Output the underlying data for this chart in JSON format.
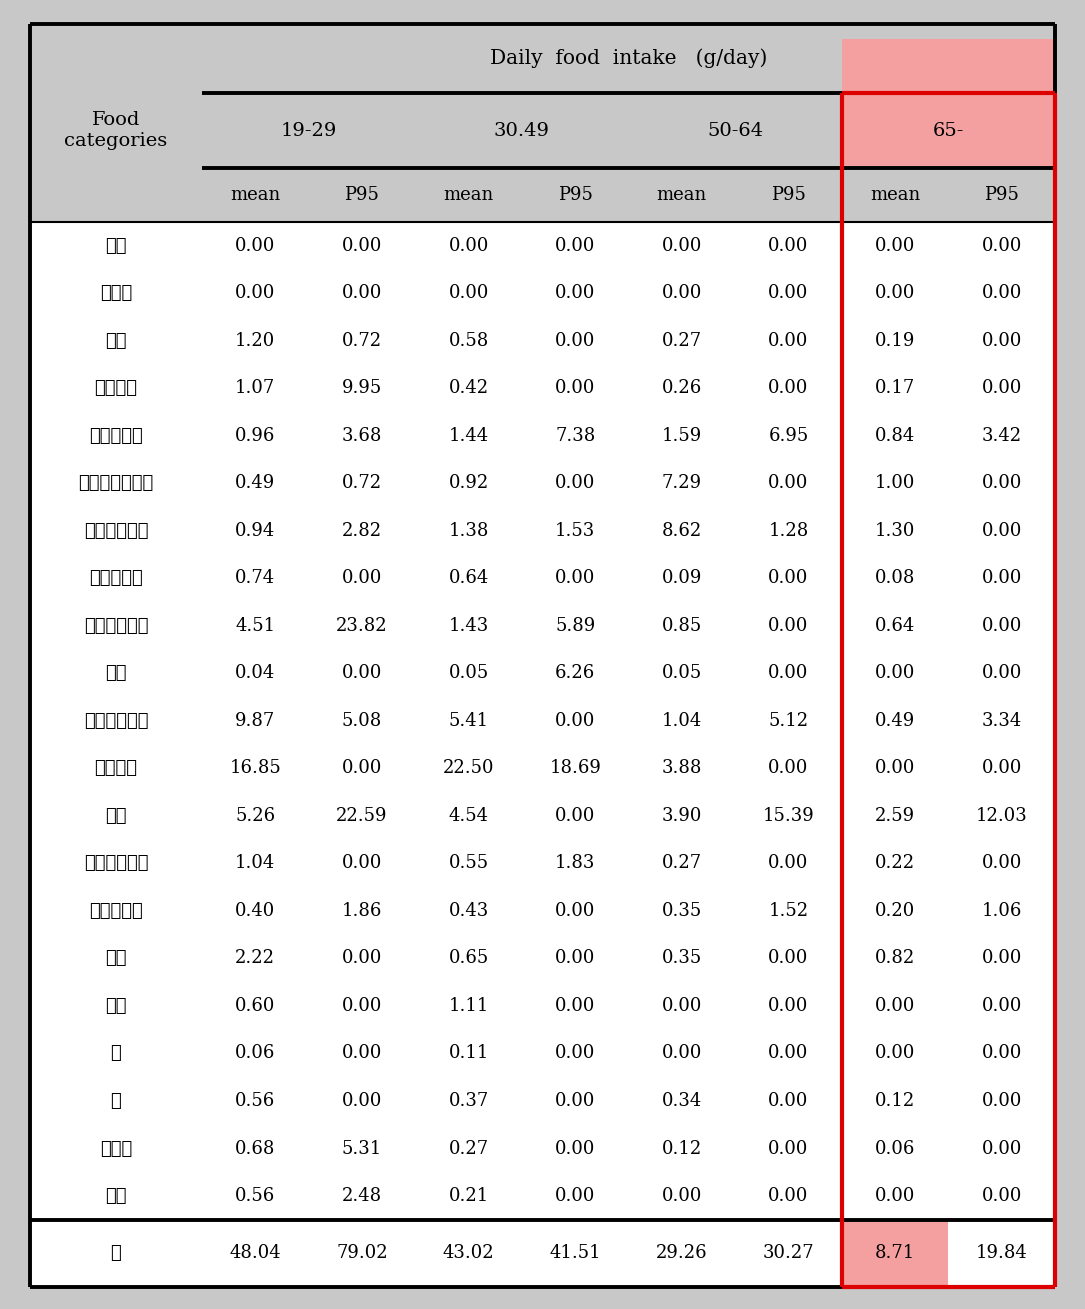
{
  "title_row": "Daily  food  intake   (g/day)",
  "age_groups": [
    "19-29",
    "30.49",
    "50-64",
    "65-"
  ],
  "sub_headers": [
    "mean",
    "P95"
  ],
  "food_categories": [
    "분유",
    "이유식",
    "음료",
    "과일주스",
    "과일통조림",
    "곡류두류통조림",
    "채소류통조림",
    "육류통조림",
    "수산물통조림",
    "스프",
    "인스턴트커피",
    "원두커피",
    "소스",
    "영양강화음료",
    "당류가공품",
    "카레",
    "짜장",
    "국",
    "빵",
    "비스킷",
    "스낙"
  ],
  "data": [
    [
      0.0,
      0.0,
      0.0,
      0.0,
      0.0,
      0.0,
      0.0,
      0.0
    ],
    [
      0.0,
      0.0,
      0.0,
      0.0,
      0.0,
      0.0,
      0.0,
      0.0
    ],
    [
      1.2,
      0.72,
      0.58,
      0.0,
      0.27,
      0.0,
      0.19,
      0.0
    ],
    [
      1.07,
      9.95,
      0.42,
      0.0,
      0.26,
      0.0,
      0.17,
      0.0
    ],
    [
      0.96,
      3.68,
      1.44,
      7.38,
      1.59,
      6.95,
      0.84,
      3.42
    ],
    [
      0.49,
      0.72,
      0.92,
      0.0,
      7.29,
      0.0,
      1.0,
      0.0
    ],
    [
      0.94,
      2.82,
      1.38,
      1.53,
      8.62,
      1.28,
      1.3,
      0.0
    ],
    [
      0.74,
      0.0,
      0.64,
      0.0,
      0.09,
      0.0,
      0.08,
      0.0
    ],
    [
      4.51,
      23.82,
      1.43,
      5.89,
      0.85,
      0.0,
      0.64,
      0.0
    ],
    [
      0.04,
      0.0,
      0.05,
      6.26,
      0.05,
      0.0,
      0.0,
      0.0
    ],
    [
      9.87,
      5.08,
      5.41,
      0.0,
      1.04,
      5.12,
      0.49,
      3.34
    ],
    [
      16.85,
      0.0,
      22.5,
      18.69,
      3.88,
      0.0,
      0.0,
      0.0
    ],
    [
      5.26,
      22.59,
      4.54,
      0.0,
      3.9,
      15.39,
      2.59,
      12.03
    ],
    [
      1.04,
      0.0,
      0.55,
      1.83,
      0.27,
      0.0,
      0.22,
      0.0
    ],
    [
      0.4,
      1.86,
      0.43,
      0.0,
      0.35,
      1.52,
      0.2,
      1.06
    ],
    [
      2.22,
      0.0,
      0.65,
      0.0,
      0.35,
      0.0,
      0.82,
      0.0
    ],
    [
      0.6,
      0.0,
      1.11,
      0.0,
      0.0,
      0.0,
      0.0,
      0.0
    ],
    [
      0.06,
      0.0,
      0.11,
      0.0,
      0.0,
      0.0,
      0.0,
      0.0
    ],
    [
      0.56,
      0.0,
      0.37,
      0.0,
      0.34,
      0.0,
      0.12,
      0.0
    ],
    [
      0.68,
      5.31,
      0.27,
      0.0,
      0.12,
      0.0,
      0.06,
      0.0
    ],
    [
      0.56,
      2.48,
      0.21,
      0.0,
      0.0,
      0.0,
      0.0,
      0.0
    ]
  ],
  "total_row": [
    "계",
    48.04,
    79.02,
    43.02,
    41.51,
    29.26,
    30.27,
    8.71,
    19.84
  ],
  "highlight_color": "#f4a0a0",
  "header_bg": "#c8c8c8",
  "body_bg": "#ffffff",
  "thick_line_color": "#000000",
  "red_border_color": "#dd0000"
}
